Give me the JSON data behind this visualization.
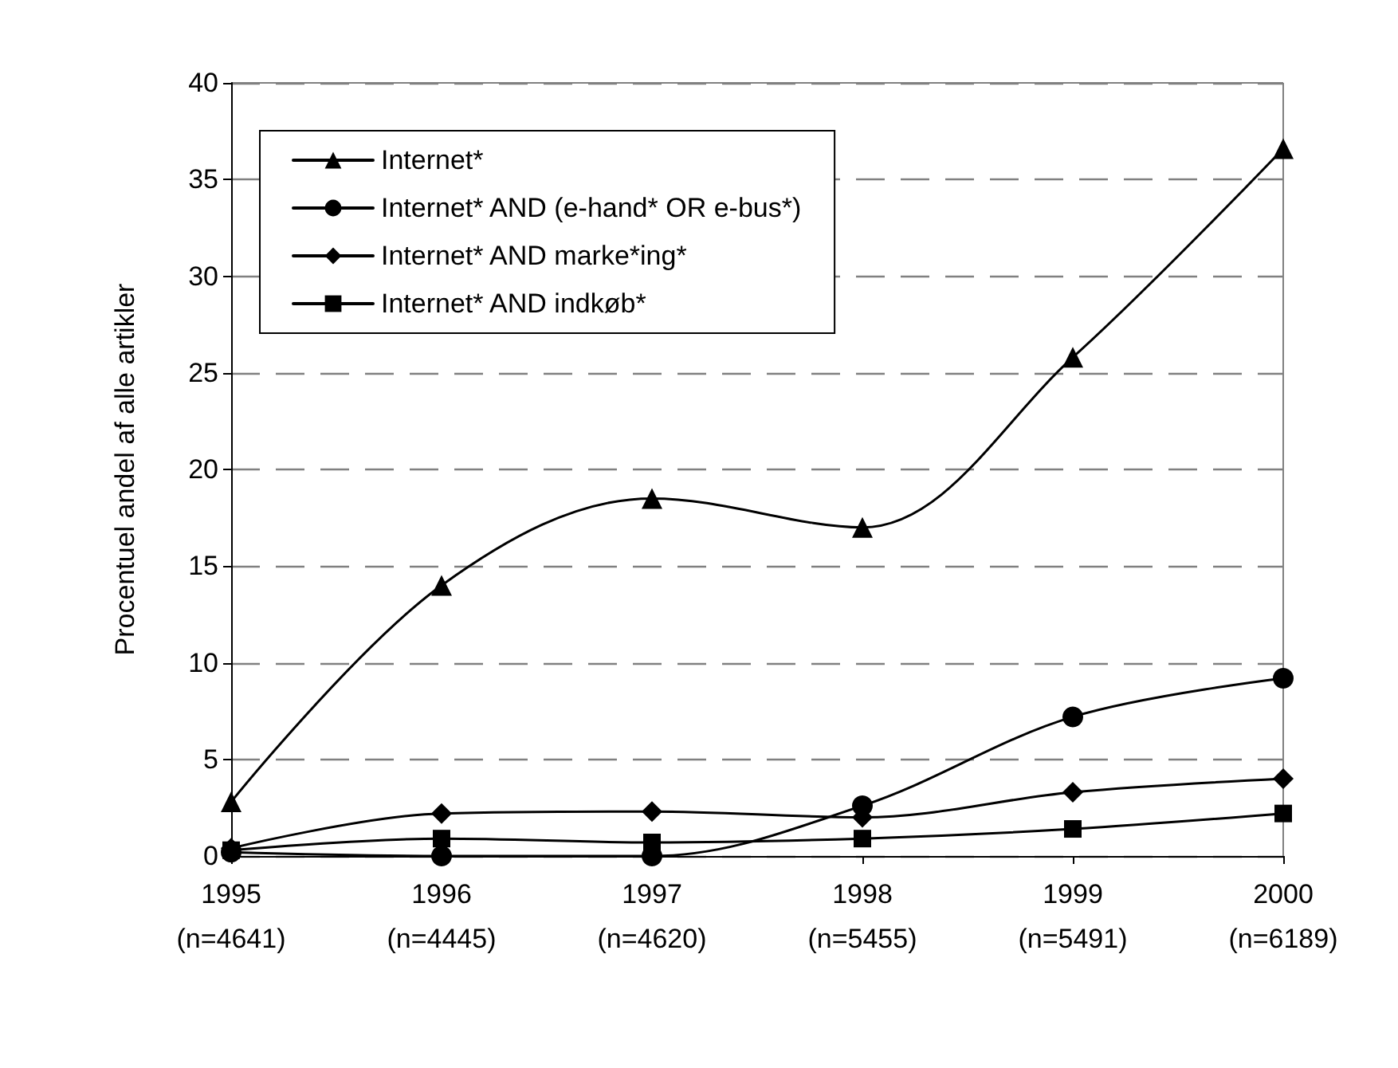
{
  "chart_data": {
    "type": "line",
    "ylabel": "Procentuel andel af alle artikler",
    "categories": [
      "1995\n(n=4641)",
      "1996\n(n=4445)",
      "1997\n(n=4620)",
      "1998\n(n=5455)",
      "1999\n(n=5491)",
      "2000\n(n=6189)"
    ],
    "series": [
      {
        "name": "Internet*",
        "color": "#000000",
        "marker": "triangle",
        "values": [
          2.8,
          14.0,
          18.5,
          17.0,
          25.8,
          36.6
        ]
      },
      {
        "name": "Internet* AND (e-hand* OR e-bus*)",
        "color": "#000000",
        "marker": "circle",
        "values": [
          0.2,
          0.0,
          0.0,
          2.6,
          7.2,
          9.2
        ]
      },
      {
        "name": "Internet* AND marke*ing*",
        "color": "#000000",
        "marker": "diamond",
        "values": [
          0.4,
          2.2,
          2.3,
          2.0,
          3.3,
          4.0
        ]
      },
      {
        "name": "Internet* AND indkøb*",
        "color": "#000000",
        "marker": "square",
        "values": [
          0.3,
          0.9,
          0.7,
          0.9,
          1.4,
          2.2
        ]
      }
    ],
    "ylim": [
      0,
      40
    ],
    "yticks": [
      0,
      5,
      10,
      15,
      20,
      25,
      30,
      35,
      40
    ],
    "grid": "y",
    "line_style": "solid",
    "legend": "top left"
  }
}
